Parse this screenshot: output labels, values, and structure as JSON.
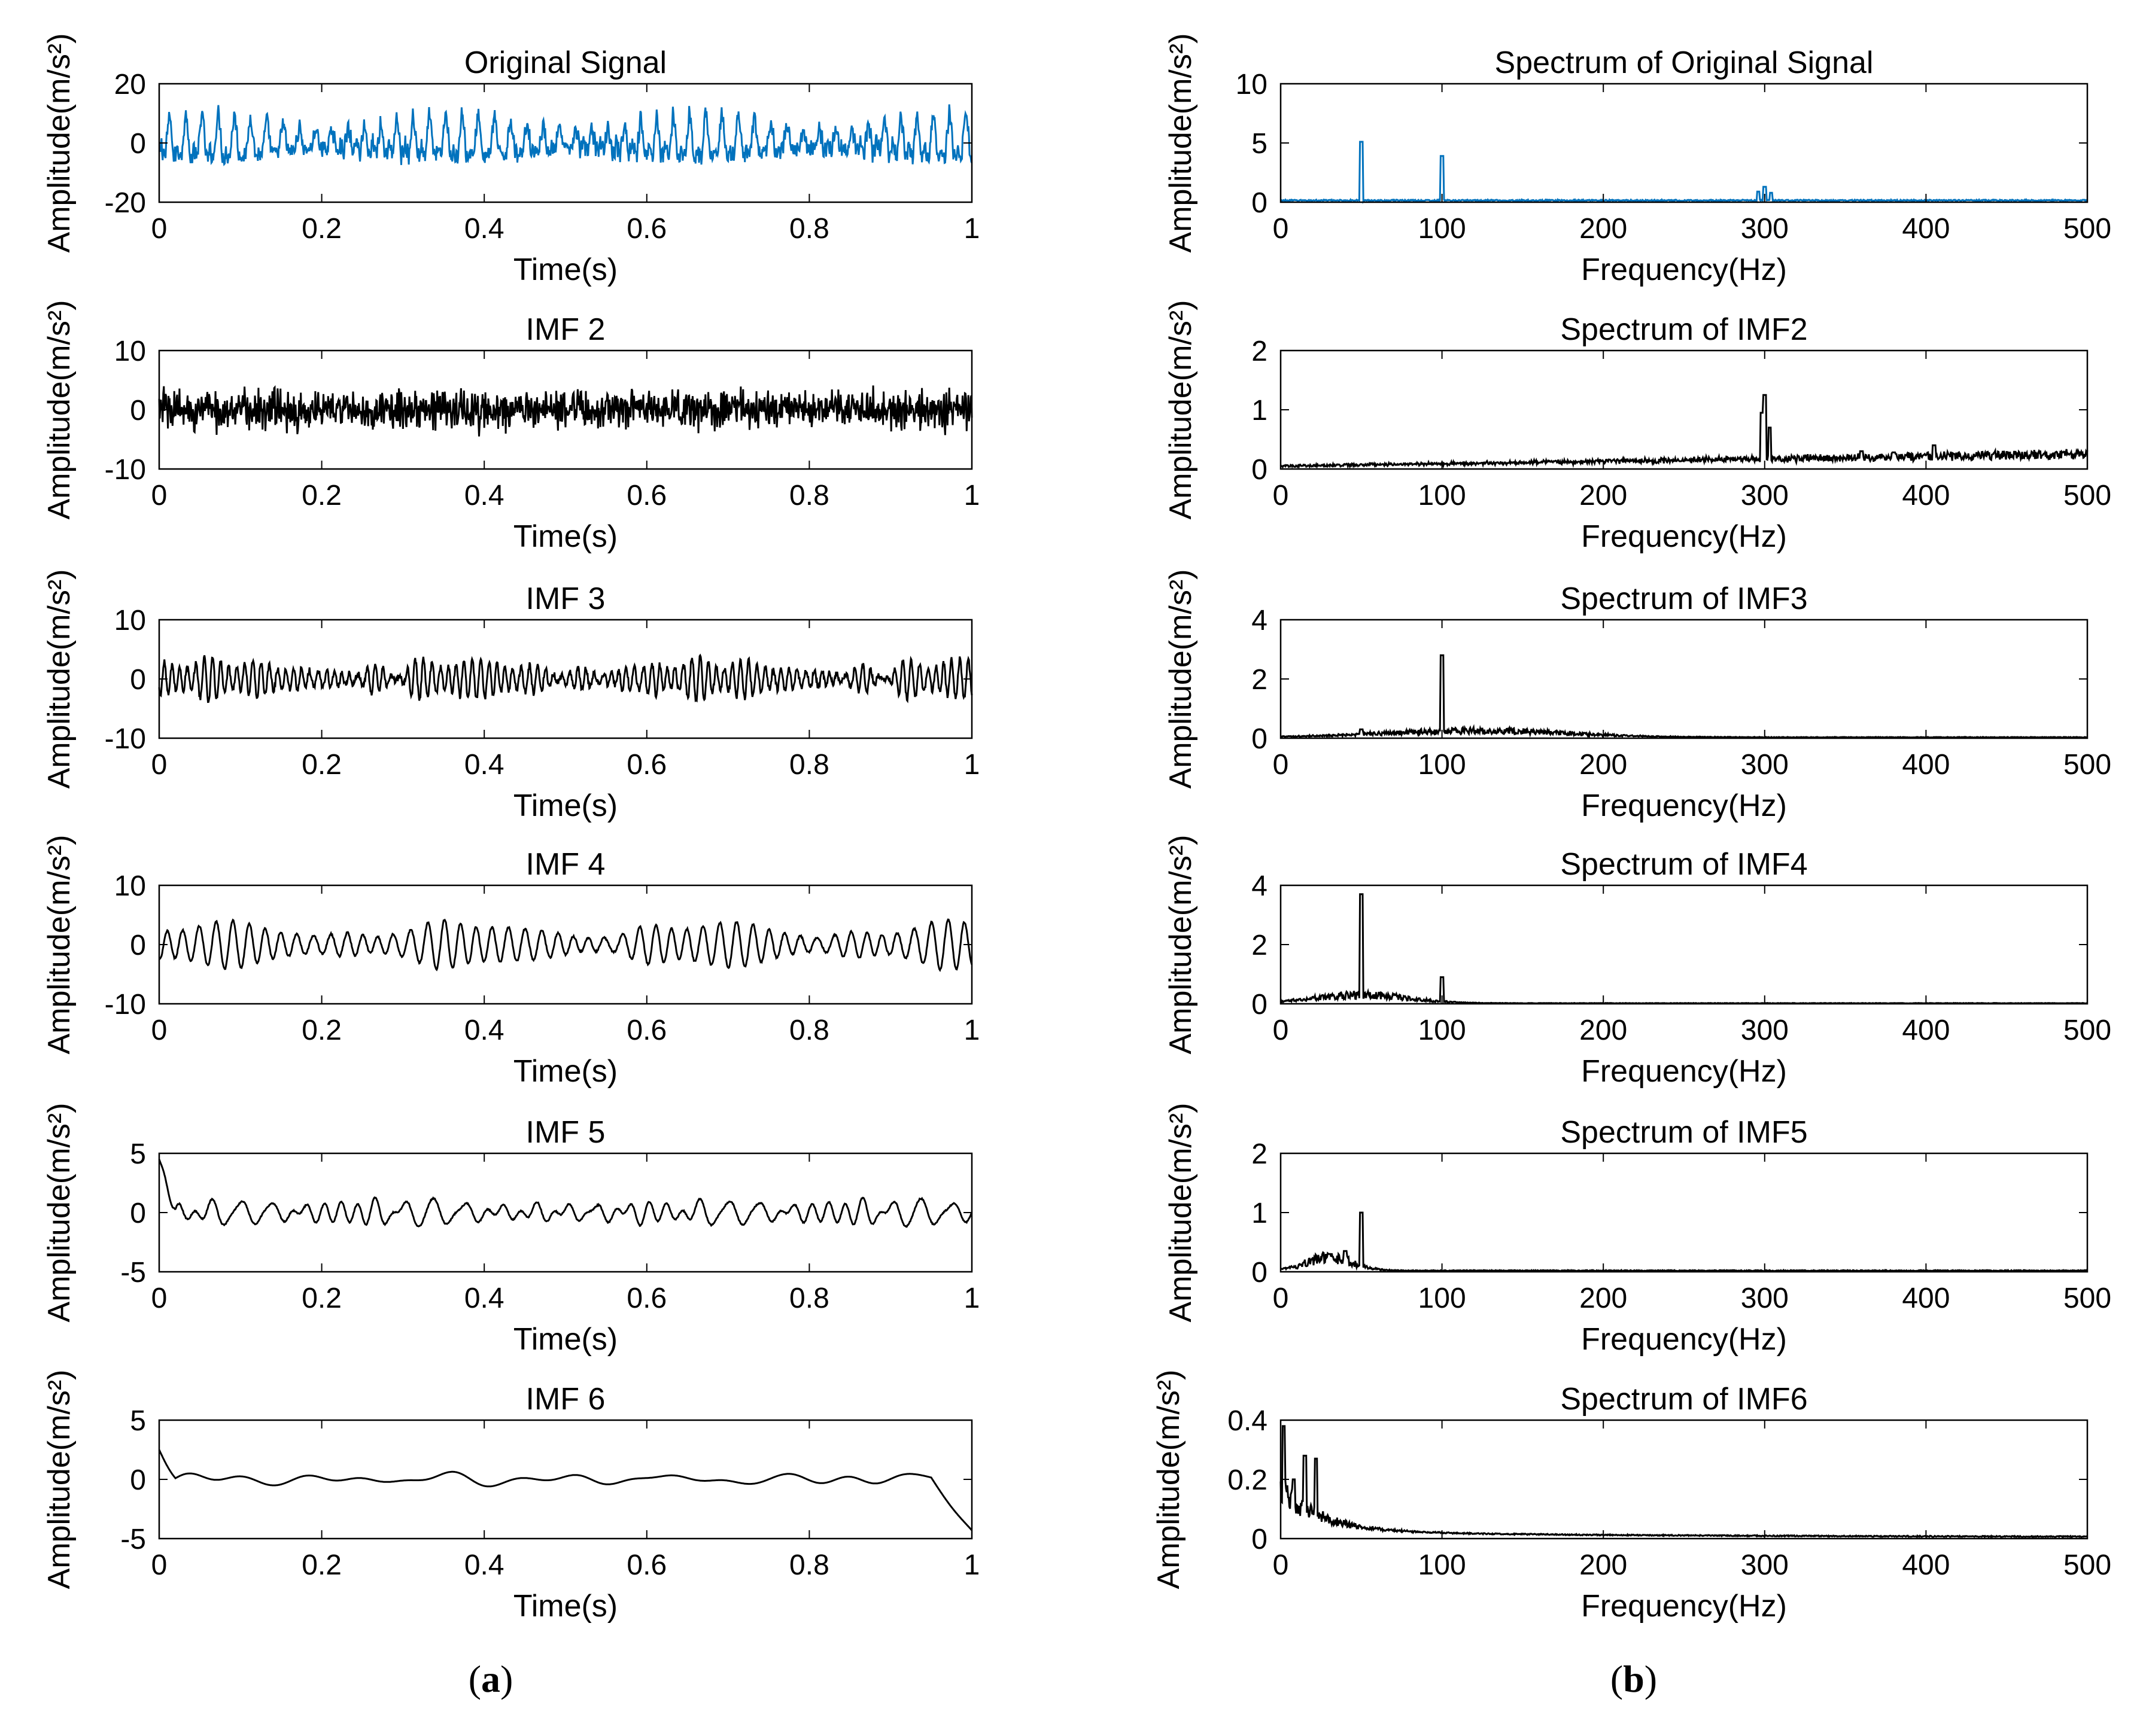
{
  "panel_labels": {
    "a": "(a)",
    "b": "(b)",
    "a_letter": "a",
    "b_letter": "b"
  },
  "colors": {
    "blue": "#0072BD",
    "black": "#000000"
  },
  "chart_data": [
    {
      "id": "a1",
      "type": "line",
      "title": "Original Signal",
      "xlabel": "Time(s)",
      "ylabel": "Amplitude(m/s²)",
      "xlim": [
        0,
        1
      ],
      "ylim": [
        -20,
        20
      ],
      "xticks": [
        0,
        0.2,
        0.4,
        0.6,
        0.8,
        1
      ],
      "yticks": [
        -20,
        0,
        20
      ],
      "xtick_labels": [
        "0",
        "0.2",
        "0.4",
        "0.6",
        "0.8",
        "1"
      ],
      "ytick_labels": [
        "-20",
        "0",
        "20"
      ],
      "color": "blue",
      "signal": {
        "kind": "time",
        "freqs": [
          50,
          100,
          300
        ],
        "amps": [
          6,
          3.5,
          1.5
        ],
        "noise": 2.5,
        "trend": 0
      }
    },
    {
      "id": "a2",
      "type": "line",
      "title": "IMF 2",
      "xlabel": "Time(s)",
      "ylabel": "Amplitude(m/s²)",
      "xlim": [
        0,
        1
      ],
      "ylim": [
        -10,
        10
      ],
      "xticks": [
        0,
        0.2,
        0.4,
        0.6,
        0.8,
        1
      ],
      "yticks": [
        -10,
        0,
        10
      ],
      "xtick_labels": [
        "0",
        "0.2",
        "0.4",
        "0.6",
        "0.8",
        "1"
      ],
      "ytick_labels": [
        "-10",
        "0",
        "10"
      ],
      "color": "black",
      "signal": {
        "kind": "noise",
        "freqs": [
          300
        ],
        "amps": [
          1.2
        ],
        "noise": 1.8,
        "trend": 0
      }
    },
    {
      "id": "a3",
      "type": "line",
      "title": "IMF 3",
      "xlabel": "Time(s)",
      "ylabel": "Amplitude(m/s²)",
      "xlim": [
        0,
        1
      ],
      "ylim": [
        -10,
        10
      ],
      "xticks": [
        0,
        0.2,
        0.4,
        0.6,
        0.8,
        1
      ],
      "yticks": [
        -10,
        0,
        10
      ],
      "xtick_labels": [
        "0",
        "0.2",
        "0.4",
        "0.6",
        "0.8",
        "1"
      ],
      "ytick_labels": [
        "-10",
        "0",
        "10"
      ],
      "color": "black",
      "signal": {
        "kind": "time",
        "freqs": [
          100,
          85,
          120
        ],
        "amps": [
          2.6,
          0.8,
          0.6
        ],
        "noise": 0.5,
        "trend": 0
      }
    },
    {
      "id": "a4",
      "type": "line",
      "title": "IMF 4",
      "xlabel": "Time(s)",
      "ylabel": "Amplitude(m/s²)",
      "xlim": [
        0,
        1
      ],
      "ylim": [
        -10,
        10
      ],
      "xticks": [
        0,
        0.2,
        0.4,
        0.6,
        0.8,
        1
      ],
      "yticks": [
        -10,
        0,
        10
      ],
      "xtick_labels": [
        "0",
        "0.2",
        "0.4",
        "0.6",
        "0.8",
        "1"
      ],
      "ytick_labels": [
        "-10",
        "0",
        "10"
      ],
      "color": "black",
      "signal": {
        "kind": "time",
        "freqs": [
          50,
          42,
          58
        ],
        "amps": [
          3.2,
          0.8,
          0.6
        ],
        "noise": 0.15,
        "trend": 0
      }
    },
    {
      "id": "a5",
      "type": "line",
      "title": "IMF 5",
      "xlabel": "Time(s)",
      "ylabel": "Amplitude(m/s²)",
      "xlim": [
        0,
        1
      ],
      "ylim": [
        -5,
        5
      ],
      "xticks": [
        0,
        0.2,
        0.4,
        0.6,
        0.8,
        1
      ],
      "yticks": [
        -5,
        0,
        5
      ],
      "xtick_labels": [
        "0",
        "0.2",
        "0.4",
        "0.6",
        "0.8",
        "1"
      ],
      "ytick_labels": [
        "-5",
        "0",
        "5"
      ],
      "color": "black",
      "signal": {
        "kind": "time",
        "freqs": [
          25,
          30,
          45,
          50
        ],
        "amps": [
          0.6,
          0.5,
          0.4,
          0.5
        ],
        "noise": 0.05,
        "trend": 0,
        "start": 4.5
      }
    },
    {
      "id": "a6",
      "type": "line",
      "title": "IMF 6",
      "xlabel": "Time(s)",
      "ylabel": "Amplitude(m/s²)",
      "xlim": [
        0,
        1
      ],
      "ylim": [
        -5,
        5
      ],
      "xticks": [
        0,
        0.2,
        0.4,
        0.6,
        0.8,
        1
      ],
      "yticks": [
        -5,
        0,
        5
      ],
      "xtick_labels": [
        "0",
        "0.2",
        "0.4",
        "0.6",
        "0.8",
        "1"
      ],
      "ytick_labels": [
        "-5",
        "0",
        "5"
      ],
      "color": "black",
      "signal": {
        "kind": "time",
        "freqs": [
          7,
          12,
          15
        ],
        "amps": [
          0.35,
          0.3,
          0.25
        ],
        "noise": 0.0,
        "trend": 0,
        "start": 2.5,
        "end": -4.3
      }
    },
    {
      "id": "b1",
      "type": "line",
      "title": "Spectrum of Original Signal",
      "xlabel": "Frequency(Hz)",
      "ylabel": "Amplitude(m/s²)",
      "xlim": [
        0,
        500
      ],
      "ylim": [
        0,
        10
      ],
      "xticks": [
        0,
        100,
        200,
        300,
        400,
        500
      ],
      "yticks": [
        0,
        5,
        10
      ],
      "xtick_labels": [
        "0",
        "100",
        "200",
        "300",
        "400",
        "500"
      ],
      "ytick_labels": [
        "0",
        "5",
        "10"
      ],
      "color": "blue",
      "spectrum": {
        "floor": 0.15,
        "peaks": [
          [
            50,
            5.1
          ],
          [
            100,
            3.9
          ],
          [
            300,
            1.3
          ],
          [
            296,
            0.9
          ],
          [
            304,
            0.8
          ]
        ],
        "lowbump": 0
      }
    },
    {
      "id": "b2",
      "type": "line",
      "title": "Spectrum of IMF2",
      "xlabel": "Frequency(Hz)",
      "ylabel": "Amplitude(m/s²)",
      "xlim": [
        0,
        500
      ],
      "ylim": [
        0,
        2
      ],
      "xticks": [
        0,
        100,
        200,
        300,
        400,
        500
      ],
      "yticks": [
        0,
        1,
        2
      ],
      "xtick_labels": [
        "0",
        "100",
        "200",
        "300",
        "400",
        "500"
      ],
      "ytick_labels": [
        "0",
        "1",
        "2"
      ],
      "color": "black",
      "spectrum": {
        "floor": 0.05,
        "rise": 0.2,
        "peaks": [
          [
            300,
            1.25
          ],
          [
            298,
            0.95
          ],
          [
            303,
            0.7
          ],
          [
            405,
            0.4
          ],
          [
            360,
            0.3
          ],
          [
            380,
            0.28
          ]
        ],
        "lowbump": 0
      }
    },
    {
      "id": "b3",
      "type": "line",
      "title": "Spectrum of IMF3",
      "xlabel": "Frequency(Hz)",
      "ylabel": "Amplitude(m/s²)",
      "xlim": [
        0,
        500
      ],
      "ylim": [
        0,
        4
      ],
      "xticks": [
        0,
        100,
        200,
        300,
        400,
        500
      ],
      "yticks": [
        0,
        2,
        4
      ],
      "xtick_labels": [
        "0",
        "100",
        "200",
        "300",
        "400",
        "500"
      ],
      "ytick_labels": [
        "0",
        "2",
        "4"
      ],
      "color": "black",
      "spectrum": {
        "floor": 0.03,
        "peaks": [
          [
            100,
            2.8
          ],
          [
            50,
            0.3
          ]
        ],
        "lowbump": 0.22,
        "bumpcenter": 120,
        "bumpwidth": 80
      }
    },
    {
      "id": "b4",
      "type": "line",
      "title": "Spectrum of IMF4",
      "xlabel": "Frequency(Hz)",
      "ylabel": "Amplitude(m/s²)",
      "xlim": [
        0,
        500
      ],
      "ylim": [
        0,
        4
      ],
      "xticks": [
        0,
        100,
        200,
        300,
        400,
        500
      ],
      "yticks": [
        0,
        2,
        4
      ],
      "xtick_labels": [
        "0",
        "100",
        "200",
        "300",
        "400",
        "500"
      ],
      "ytick_labels": [
        "0",
        "2",
        "4"
      ],
      "color": "black",
      "spectrum": {
        "floor": 0.02,
        "peaks": [
          [
            50,
            3.7
          ],
          [
            100,
            0.9
          ]
        ],
        "lowbump": 0.28,
        "bumpcenter": 50,
        "bumpwidth": 40
      }
    },
    {
      "id": "b5",
      "type": "line",
      "title": "Spectrum of IMF5",
      "xlabel": "Frequency(Hz)",
      "ylabel": "Amplitude(m/s²)",
      "xlim": [
        0,
        500
      ],
      "ylim": [
        0,
        2
      ],
      "xticks": [
        0,
        100,
        200,
        300,
        400,
        500
      ],
      "yticks": [
        0,
        1,
        2
      ],
      "xtick_labels": [
        "0",
        "100",
        "200",
        "300",
        "400",
        "500"
      ],
      "ytick_labels": [
        "0",
        "1",
        "2"
      ],
      "color": "black",
      "spectrum": {
        "floor": 0.02,
        "peaks": [
          [
            50,
            1.0
          ],
          [
            40,
            0.35
          ],
          [
            30,
            0.3
          ]
        ],
        "lowbump": 0.22,
        "bumpcenter": 30,
        "bumpwidth": 20
      }
    },
    {
      "id": "b6",
      "type": "line",
      "title": "Spectrum of IMF6",
      "xlabel": "Frequency(Hz)",
      "ylabel": "Amplitude(m/s²)",
      "xlim": [
        0,
        500
      ],
      "ylim": [
        0,
        0.4
      ],
      "xticks": [
        0,
        100,
        200,
        300,
        400,
        500
      ],
      "yticks": [
        0,
        0.2,
        0.4
      ],
      "xtick_labels": [
        "0",
        "100",
        "200",
        "300",
        "400",
        "500"
      ],
      "ytick_labels": [
        "0",
        "0.2",
        "0.4"
      ],
      "color": "black",
      "spectrum": {
        "floor": 0.005,
        "decay": true,
        "peaks": [
          [
            2,
            0.38
          ],
          [
            15,
            0.28
          ],
          [
            22,
            0.27
          ],
          [
            8,
            0.2
          ]
        ],
        "lowbump": 0
      }
    }
  ]
}
